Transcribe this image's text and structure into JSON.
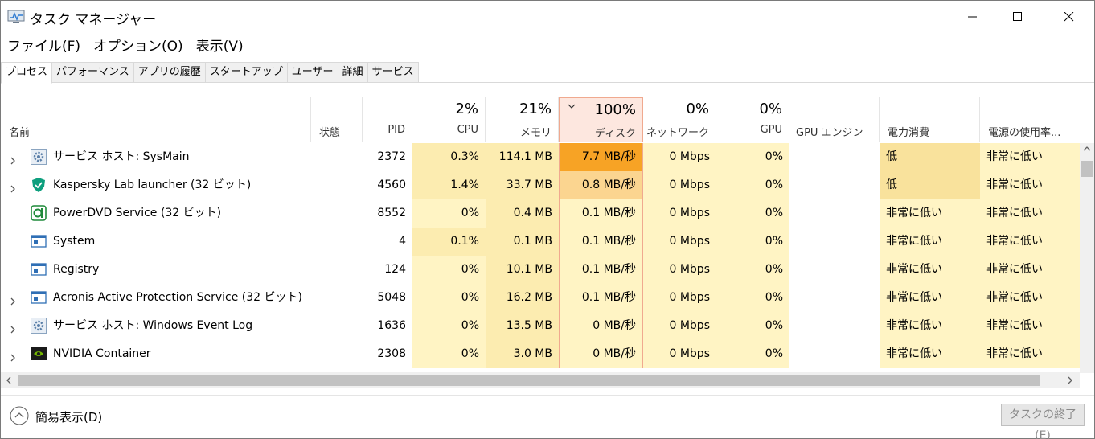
{
  "window": {
    "title": "タスク マネージャー"
  },
  "menu": [
    "ファイル(F)",
    "オプション(O)",
    "表示(V)"
  ],
  "tabs": [
    "プロセス",
    "パフォーマンス",
    "アプリの履歴",
    "スタートアップ",
    "ユーザー",
    "詳細",
    "サービス"
  ],
  "columns": {
    "name": "名前",
    "status": "状態",
    "pid": "PID",
    "cpu": {
      "pct": "2%",
      "label": "CPU"
    },
    "memory": {
      "pct": "21%",
      "label": "メモリ"
    },
    "disk": {
      "pct": "100%",
      "label": "ディスク"
    },
    "network": {
      "pct": "0%",
      "label": "ネットワーク"
    },
    "gpu": {
      "pct": "0%",
      "label": "GPU"
    },
    "gpu_engine": "GPU エンジン",
    "power": "電力消費",
    "power_trend": "電源の使用率..."
  },
  "processes": [
    {
      "name": "サービス ホスト: SysMain",
      "icon": "gear-icon",
      "expandable": true,
      "pid": "2372",
      "cpu": "0.3%",
      "memory": "114.1 MB",
      "disk": "7.7 MB/秒",
      "network": "0 Mbps",
      "gpu": "0%",
      "power": "低",
      "power_trend": "非常に低い"
    },
    {
      "name": "Kaspersky Lab launcher (32 ビット)",
      "icon": "shield-icon",
      "expandable": true,
      "pid": "4560",
      "cpu": "1.4%",
      "memory": "33.7 MB",
      "disk": "0.8 MB/秒",
      "network": "0 Mbps",
      "gpu": "0%",
      "power": "低",
      "power_trend": "非常に低い"
    },
    {
      "name": "PowerDVD Service (32 ビット)",
      "icon": "powerdvd-icon",
      "expandable": false,
      "pid": "8552",
      "cpu": "0%",
      "memory": "0.4 MB",
      "disk": "0.1 MB/秒",
      "network": "0 Mbps",
      "gpu": "0%",
      "power": "非常に低い",
      "power_trend": "非常に低い"
    },
    {
      "name": "System",
      "icon": "window-icon",
      "expandable": false,
      "pid": "4",
      "cpu": "0.1%",
      "memory": "0.1 MB",
      "disk": "0.1 MB/秒",
      "network": "0 Mbps",
      "gpu": "0%",
      "power": "非常に低い",
      "power_trend": "非常に低い"
    },
    {
      "name": "Registry",
      "icon": "window-icon",
      "expandable": false,
      "pid": "124",
      "cpu": "0%",
      "memory": "10.1 MB",
      "disk": "0.1 MB/秒",
      "network": "0 Mbps",
      "gpu": "0%",
      "power": "非常に低い",
      "power_trend": "非常に低い"
    },
    {
      "name": "Acronis Active Protection Service (32 ビット)",
      "icon": "window-icon",
      "expandable": true,
      "pid": "5048",
      "cpu": "0%",
      "memory": "16.2 MB",
      "disk": "0.1 MB/秒",
      "network": "0 Mbps",
      "gpu": "0%",
      "power": "非常に低い",
      "power_trend": "非常に低い"
    },
    {
      "name": "サービス ホスト: Windows Event Log",
      "icon": "gear-icon",
      "expandable": true,
      "pid": "1636",
      "cpu": "0%",
      "memory": "13.5 MB",
      "disk": "0 MB/秒",
      "network": "0 Mbps",
      "gpu": "0%",
      "power": "非常に低い",
      "power_trend": "非常に低い"
    },
    {
      "name": "NVIDIA Container",
      "icon": "nvidia-icon",
      "expandable": true,
      "pid": "2308",
      "cpu": "0%",
      "memory": "3.0 MB",
      "disk": "0 MB/秒",
      "network": "0 Mbps",
      "gpu": "0%",
      "power": "非常に低い",
      "power_trend": "非常に低い"
    }
  ],
  "footer": {
    "simple_view": "簡易表示(D)",
    "end_task": "タスクの終了(E)"
  },
  "colors": {
    "heat_light": "#fff4c4",
    "heat_mid": "#fcecb0",
    "heat_high": "#f9e29c",
    "disk_hot": "#f7a325",
    "disk_warm": "#fbd590",
    "disk_header": "#fde7df"
  }
}
